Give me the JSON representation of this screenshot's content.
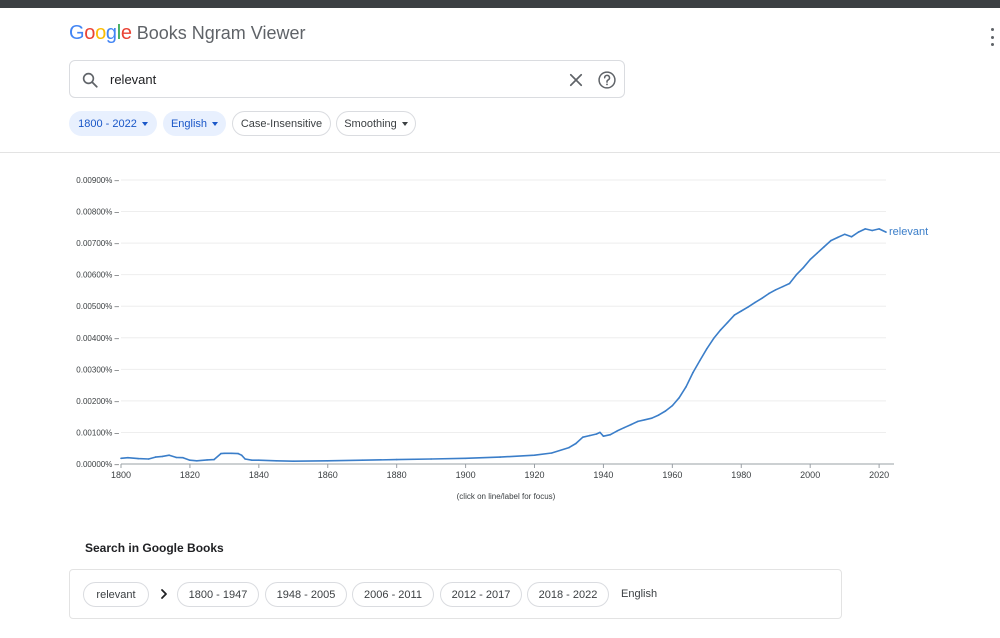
{
  "header": {
    "logo_letters": [
      {
        "ch": "G",
        "color": "#4285f4"
      },
      {
        "ch": "o",
        "color": "#ea4335"
      },
      {
        "ch": "o",
        "color": "#fbbc05"
      },
      {
        "ch": "g",
        "color": "#4285f4"
      },
      {
        "ch": "l",
        "color": "#34a853"
      },
      {
        "ch": "e",
        "color": "#ea4335"
      }
    ],
    "logo_text": "Google",
    "app_name": "Books Ngram Viewer",
    "menu_icon": "more-vert-icon"
  },
  "search": {
    "value": "relevant",
    "search_icon": "search-icon",
    "clear_icon": "close-icon",
    "help_icon": "help-icon"
  },
  "filters": {
    "year_range": "1800 - 2022",
    "corpus": "English",
    "case": "Case-Insensitive",
    "smoothing": "Smoothing"
  },
  "chart_data": {
    "type": "line",
    "title": "",
    "xlabel": "",
    "ylabel": "",
    "xlim": [
      1800,
      2022
    ],
    "ylim": [
      0,
      0.009
    ],
    "x_ticks": [
      "1800",
      "1820",
      "1840",
      "1860",
      "1880",
      "1900",
      "1920",
      "1940",
      "1960",
      "1980",
      "2000",
      "2020"
    ],
    "y_ticks": [
      "0.00000%",
      "0.00100%",
      "0.00200%",
      "0.00300%",
      "0.00400%",
      "0.00500%",
      "0.00600%",
      "0.00700%",
      "0.00800%",
      "0.00900%"
    ],
    "grid": true,
    "legend": "end-of-line label",
    "note": "(click on line/label for focus)",
    "series": [
      {
        "name": "relevant",
        "color": "#3b7ec9",
        "x": [
          1800,
          1802,
          1805,
          1808,
          1810,
          1812,
          1814,
          1816,
          1818,
          1820,
          1822,
          1825,
          1827,
          1829,
          1830,
          1832,
          1834,
          1835,
          1836,
          1838,
          1840,
          1845,
          1850,
          1860,
          1870,
          1880,
          1890,
          1900,
          1910,
          1920,
          1925,
          1930,
          1932,
          1934,
          1936,
          1938,
          1939,
          1940,
          1942,
          1944,
          1946,
          1948,
          1950,
          1952,
          1954,
          1956,
          1958,
          1960,
          1962,
          1964,
          1966,
          1968,
          1970,
          1972,
          1974,
          1976,
          1978,
          1980,
          1982,
          1984,
          1986,
          1988,
          1990,
          1992,
          1994,
          1996,
          1998,
          2000,
          2002,
          2004,
          2006,
          2008,
          2010,
          2012,
          2014,
          2016,
          2018,
          2020,
          2022
        ],
        "values": [
          0.00018,
          0.0002,
          0.00017,
          0.00016,
          0.00022,
          0.00024,
          0.00028,
          0.00021,
          0.0002,
          0.00012,
          0.0001,
          0.00013,
          0.00014,
          0.00033,
          0.00034,
          0.00034,
          0.00033,
          0.00028,
          0.00016,
          0.00012,
          0.00012,
          0.0001,
          9e-05,
          0.0001,
          0.00012,
          0.00014,
          0.00016,
          0.00018,
          0.00022,
          0.00028,
          0.00035,
          0.00052,
          0.00065,
          0.00085,
          0.0009,
          0.00095,
          0.001,
          0.00088,
          0.00093,
          0.00105,
          0.00115,
          0.00125,
          0.00135,
          0.0014,
          0.00145,
          0.00155,
          0.00168,
          0.00185,
          0.0021,
          0.00245,
          0.0029,
          0.00328,
          0.00365,
          0.00398,
          0.00425,
          0.00448,
          0.00472,
          0.00485,
          0.00498,
          0.00512,
          0.00525,
          0.0054,
          0.00552,
          0.00562,
          0.00572,
          0.006,
          0.00622,
          0.00648,
          0.00668,
          0.00688,
          0.00708,
          0.00718,
          0.00728,
          0.0072,
          0.00735,
          0.00745,
          0.0074,
          0.00745,
          0.00735
        ]
      }
    ]
  },
  "results": {
    "title": "Search in Google Books",
    "query_chip": "relevant",
    "chevron_icon": "chevron-right-icon",
    "ranges": [
      "1800 - 1947",
      "1948 - 2005",
      "2006 - 2011",
      "2012 - 2017",
      "2018 - 2022"
    ],
    "corpus": "English"
  }
}
